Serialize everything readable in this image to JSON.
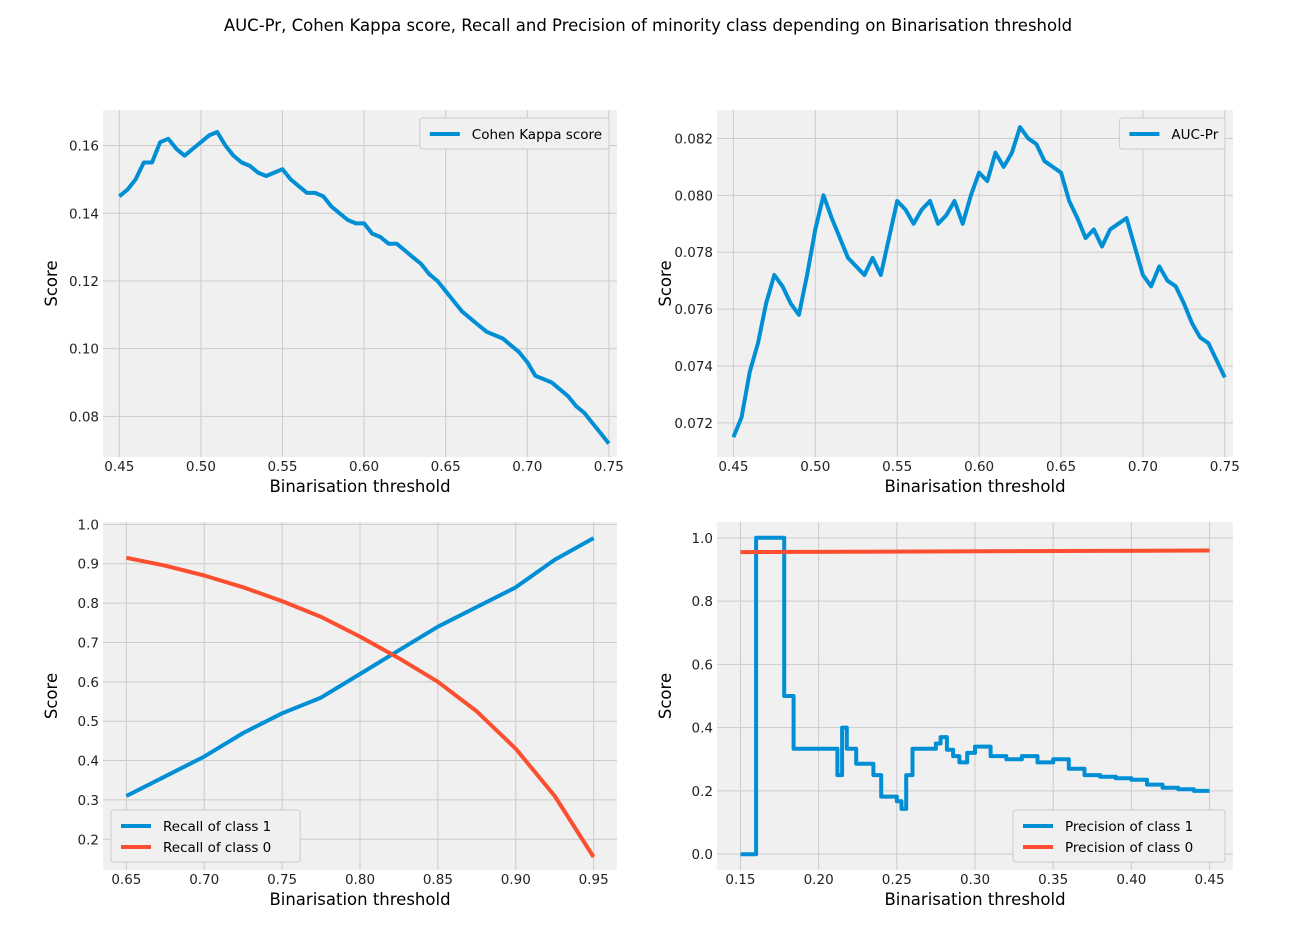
{
  "figure": {
    "title": "AUC-Pr, Cohen Kappa score, Recall and Precision of minority class depending on Binarisation threshold"
  },
  "colors": {
    "blue": "#008fd5",
    "red": "#fc4f30",
    "panel_bg": "#f0f0f0",
    "grid": "#cbcbcb"
  },
  "chart_data": [
    {
      "type": "line",
      "title": "",
      "xlabel": "Binarisation threshold",
      "ylabel": "Score",
      "xlim": [
        0.44,
        0.755
      ],
      "ylim": [
        0.068,
        0.1705
      ],
      "xticks": [
        0.45,
        0.5,
        0.55,
        0.6,
        0.65,
        0.7,
        0.75
      ],
      "xtick_labels": [
        "0.45",
        "0.50",
        "0.55",
        "0.60",
        "0.65",
        "0.70",
        "0.75"
      ],
      "yticks": [
        0.08,
        0.1,
        0.12,
        0.14,
        0.16
      ],
      "ytick_labels": [
        "0.08",
        "0.10",
        "0.12",
        "0.14",
        "0.16"
      ],
      "legend_position": "upper right",
      "grid": true,
      "series": [
        {
          "name": "Cohen Kappa score",
          "color": "#008fd5",
          "x": [
            0.45,
            0.455,
            0.46,
            0.465,
            0.47,
            0.475,
            0.48,
            0.485,
            0.49,
            0.495,
            0.5,
            0.505,
            0.51,
            0.515,
            0.52,
            0.525,
            0.53,
            0.535,
            0.54,
            0.545,
            0.55,
            0.555,
            0.56,
            0.565,
            0.57,
            0.575,
            0.58,
            0.585,
            0.59,
            0.595,
            0.6,
            0.605,
            0.61,
            0.615,
            0.62,
            0.625,
            0.63,
            0.635,
            0.64,
            0.645,
            0.65,
            0.655,
            0.66,
            0.665,
            0.67,
            0.675,
            0.68,
            0.685,
            0.69,
            0.695,
            0.7,
            0.705,
            0.71,
            0.715,
            0.72,
            0.725,
            0.73,
            0.735,
            0.74,
            0.745,
            0.75
          ],
          "y": [
            0.145,
            0.147,
            0.15,
            0.155,
            0.155,
            0.161,
            0.162,
            0.159,
            0.157,
            0.159,
            0.161,
            0.163,
            0.164,
            0.16,
            0.157,
            0.155,
            0.154,
            0.152,
            0.151,
            0.152,
            0.153,
            0.15,
            0.148,
            0.146,
            0.146,
            0.145,
            0.142,
            0.14,
            0.138,
            0.137,
            0.137,
            0.134,
            0.133,
            0.131,
            0.131,
            0.129,
            0.127,
            0.125,
            0.122,
            0.12,
            0.117,
            0.114,
            0.111,
            0.109,
            0.107,
            0.105,
            0.104,
            0.103,
            0.101,
            0.099,
            0.096,
            0.092,
            0.091,
            0.09,
            0.088,
            0.086,
            0.083,
            0.081,
            0.078,
            0.075,
            0.072
          ]
        }
      ]
    },
    {
      "type": "line",
      "title": "",
      "xlabel": "Binarisation threshold",
      "ylabel": "Score",
      "xlim": [
        0.44,
        0.755
      ],
      "ylim": [
        0.0708,
        0.083
      ],
      "xticks": [
        0.45,
        0.5,
        0.55,
        0.6,
        0.65,
        0.7,
        0.75
      ],
      "xtick_labels": [
        "0.45",
        "0.50",
        "0.55",
        "0.60",
        "0.65",
        "0.70",
        "0.75"
      ],
      "yticks": [
        0.072,
        0.074,
        0.076,
        0.078,
        0.08,
        0.082
      ],
      "ytick_labels": [
        "0.072",
        "0.074",
        "0.076",
        "0.078",
        "0.080",
        "0.082"
      ],
      "legend_position": "upper right",
      "grid": true,
      "series": [
        {
          "name": "AUC-Pr",
          "color": "#008fd5",
          "x": [
            0.45,
            0.455,
            0.46,
            0.465,
            0.47,
            0.475,
            0.48,
            0.485,
            0.49,
            0.495,
            0.5,
            0.505,
            0.51,
            0.515,
            0.52,
            0.525,
            0.53,
            0.535,
            0.54,
            0.545,
            0.55,
            0.555,
            0.56,
            0.565,
            0.57,
            0.575,
            0.58,
            0.585,
            0.59,
            0.595,
            0.6,
            0.605,
            0.61,
            0.615,
            0.62,
            0.625,
            0.63,
            0.635,
            0.64,
            0.645,
            0.65,
            0.655,
            0.66,
            0.665,
            0.67,
            0.675,
            0.68,
            0.685,
            0.69,
            0.695,
            0.7,
            0.705,
            0.71,
            0.715,
            0.72,
            0.725,
            0.73,
            0.735,
            0.74,
            0.745,
            0.75
          ],
          "y": [
            0.0715,
            0.0722,
            0.0738,
            0.0748,
            0.0762,
            0.0772,
            0.0768,
            0.0762,
            0.0758,
            0.0772,
            0.0788,
            0.08,
            0.0792,
            0.0785,
            0.0778,
            0.0775,
            0.0772,
            0.0778,
            0.0772,
            0.0785,
            0.0798,
            0.0795,
            0.079,
            0.0795,
            0.0798,
            0.079,
            0.0793,
            0.0798,
            0.079,
            0.08,
            0.0808,
            0.0805,
            0.0815,
            0.081,
            0.0815,
            0.0824,
            0.082,
            0.0818,
            0.0812,
            0.081,
            0.0808,
            0.0798,
            0.0792,
            0.0785,
            0.0788,
            0.0782,
            0.0788,
            0.079,
            0.0792,
            0.0782,
            0.0772,
            0.0768,
            0.0775,
            0.077,
            0.0768,
            0.0762,
            0.0755,
            0.075,
            0.0748,
            0.0742,
            0.0736
          ]
        }
      ]
    },
    {
      "type": "line",
      "title": "",
      "xlabel": "Binarisation threshold",
      "ylabel": "Score",
      "xlim": [
        0.635,
        0.965
      ],
      "ylim": [
        0.122,
        1.006
      ],
      "xticks": [
        0.65,
        0.7,
        0.75,
        0.8,
        0.85,
        0.9,
        0.95
      ],
      "xtick_labels": [
        "0.65",
        "0.70",
        "0.75",
        "0.80",
        "0.85",
        "0.90",
        "0.95"
      ],
      "yticks": [
        0.2,
        0.3,
        0.4,
        0.5,
        0.6,
        0.7,
        0.8,
        0.9,
        1.0
      ],
      "ytick_labels": [
        "0.2",
        "0.3",
        "0.4",
        "0.5",
        "0.6",
        "0.7",
        "0.8",
        "0.9",
        "1.0"
      ],
      "legend_position": "lower left",
      "grid": true,
      "series": [
        {
          "name": "Recall of class 1",
          "color": "#008fd5",
          "x": [
            0.65,
            0.675,
            0.7,
            0.725,
            0.75,
            0.775,
            0.8,
            0.825,
            0.85,
            0.875,
            0.9,
            0.925,
            0.95
          ],
          "y": [
            0.31,
            0.36,
            0.41,
            0.47,
            0.52,
            0.56,
            0.62,
            0.68,
            0.74,
            0.79,
            0.84,
            0.91,
            0.965
          ]
        },
        {
          "name": "Recall of class 0",
          "color": "#fc4f30",
          "x": [
            0.65,
            0.675,
            0.7,
            0.725,
            0.75,
            0.775,
            0.8,
            0.825,
            0.85,
            0.875,
            0.9,
            0.925,
            0.95
          ],
          "y": [
            0.915,
            0.895,
            0.87,
            0.84,
            0.805,
            0.765,
            0.715,
            0.66,
            0.6,
            0.525,
            0.43,
            0.31,
            0.155
          ]
        }
      ]
    },
    {
      "type": "line",
      "title": "",
      "xlabel": "Binarisation threshold",
      "ylabel": "Score",
      "xlim": [
        0.135,
        0.465
      ],
      "ylim": [
        -0.05,
        1.05
      ],
      "xticks": [
        0.15,
        0.2,
        0.25,
        0.3,
        0.35,
        0.4,
        0.45
      ],
      "xtick_labels": [
        "0.15",
        "0.20",
        "0.25",
        "0.30",
        "0.35",
        "0.40",
        "0.45"
      ],
      "yticks": [
        0.0,
        0.2,
        0.4,
        0.6,
        0.8,
        1.0
      ],
      "ytick_labels": [
        "0.0",
        "0.2",
        "0.4",
        "0.6",
        "0.8",
        "1.0"
      ],
      "legend_position": "lower right",
      "grid": true,
      "series": [
        {
          "name": "Precision of class 1",
          "color": "#008fd5",
          "step": true,
          "x": [
            0.15,
            0.16,
            0.17,
            0.178,
            0.184,
            0.195,
            0.205,
            0.212,
            0.215,
            0.218,
            0.224,
            0.23,
            0.235,
            0.24,
            0.245,
            0.25,
            0.253,
            0.256,
            0.26,
            0.265,
            0.27,
            0.275,
            0.278,
            0.282,
            0.286,
            0.29,
            0.295,
            0.3,
            0.31,
            0.32,
            0.33,
            0.34,
            0.35,
            0.36,
            0.37,
            0.38,
            0.39,
            0.4,
            0.41,
            0.42,
            0.43,
            0.44,
            0.45
          ],
          "y": [
            0.0,
            1.0,
            1.0,
            0.5,
            0.333,
            0.333,
            0.333,
            0.25,
            0.4,
            0.333,
            0.286,
            0.286,
            0.25,
            0.182,
            0.182,
            0.167,
            0.143,
            0.25,
            0.333,
            0.333,
            0.333,
            0.35,
            0.37,
            0.33,
            0.31,
            0.29,
            0.32,
            0.34,
            0.31,
            0.3,
            0.31,
            0.29,
            0.3,
            0.27,
            0.25,
            0.245,
            0.24,
            0.235,
            0.22,
            0.21,
            0.205,
            0.2,
            0.2
          ]
        },
        {
          "name": "Precision of class 0",
          "color": "#fc4f30",
          "step": false,
          "x": [
            0.15,
            0.45
          ],
          "y": [
            0.955,
            0.96
          ]
        }
      ]
    }
  ]
}
